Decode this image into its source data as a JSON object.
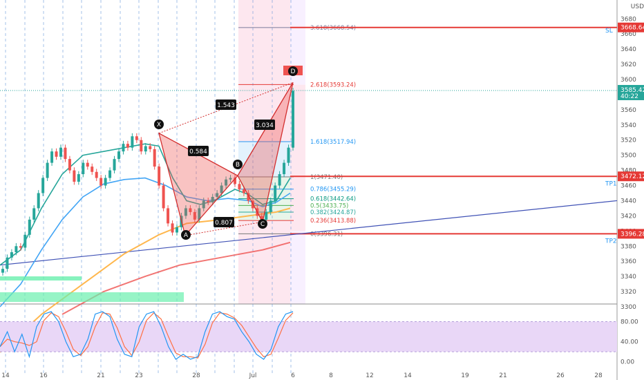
{
  "chart_data": {
    "type": "candlestick",
    "currency": "USD",
    "price_axis": {
      "ylim": [
        3290,
        3700
      ],
      "ticks": [
        3300,
        3320,
        3340,
        3360,
        3380,
        3400,
        3420,
        3440,
        3460,
        3480,
        3500,
        3520,
        3540,
        3560,
        3580,
        3600,
        3620,
        3640,
        3660,
        3680
      ]
    },
    "time_axis": {
      "tick_labels": [
        "14",
        "16",
        "21",
        "23",
        "28",
        "Jul",
        "6",
        "8",
        "12",
        "14",
        "19",
        "21",
        "26",
        "28"
      ]
    },
    "last_price": {
      "value": "3585.42",
      "countdown": "40:22",
      "color": "#26a69a"
    },
    "price_tags": [
      {
        "value": "3668.64",
        "color": "#e53935"
      },
      {
        "value": "3472.12",
        "color": "#e53935"
      },
      {
        "value": "3396.28",
        "color": "#e53935"
      }
    ],
    "level_labels": [
      {
        "text": "SL",
        "price": 3664
      },
      {
        "text": "TP1",
        "price": 3462
      },
      {
        "text": "TP2",
        "price": 3386
      }
    ],
    "fib_levels": [
      {
        "label": "3.618(3668.54)",
        "price": 3668.54,
        "color": "#7b7b9b"
      },
      {
        "label": "2.618(3593.24)",
        "price": 3593.24,
        "color": "#e53935"
      },
      {
        "label": "1.618(3517.94)",
        "price": 3517.94,
        "color": "#2196f3"
      },
      {
        "label": "1(3471.40)",
        "price": 3471.4,
        "color": "#777777"
      },
      {
        "label": "0.786(3455.29)",
        "price": 3455.29,
        "color": "#2196f3"
      },
      {
        "label": "0.618(3442.64)",
        "price": 3442.64,
        "color": "#089981"
      },
      {
        "label": "0.5(3433.75)",
        "price": 3433.75,
        "color": "#4caf50"
      },
      {
        "label": "0.382(3424.87)",
        "price": 3424.87,
        "color": "#26a69a"
      },
      {
        "label": "0.236(3413.88)",
        "price": 3413.88,
        "color": "#e53935"
      },
      {
        "label": "0(3396.31)",
        "price": 3396.31,
        "color": "#777777"
      }
    ],
    "pattern_points": [
      {
        "name": "X",
        "price": 3529
      },
      {
        "name": "A",
        "price": 3394
      },
      {
        "name": "B",
        "price": 3473
      },
      {
        "name": "C",
        "price": 3412
      },
      {
        "name": "D",
        "price": 3596
      }
    ],
    "ratio_labels": [
      "1.543",
      "0.584",
      "3.034",
      "0.807"
    ],
    "oscillator": {
      "ylim": [
        -10,
        110
      ],
      "ticks": [
        "80.00",
        "40.00",
        "0.00"
      ],
      "band": [
        20,
        80
      ]
    },
    "colors": {
      "up": "#26a69a",
      "down": "#ef5350",
      "pattern": "#ef5350",
      "trendline": "#3f51b5",
      "zone": "#f8bbd0"
    }
  }
}
